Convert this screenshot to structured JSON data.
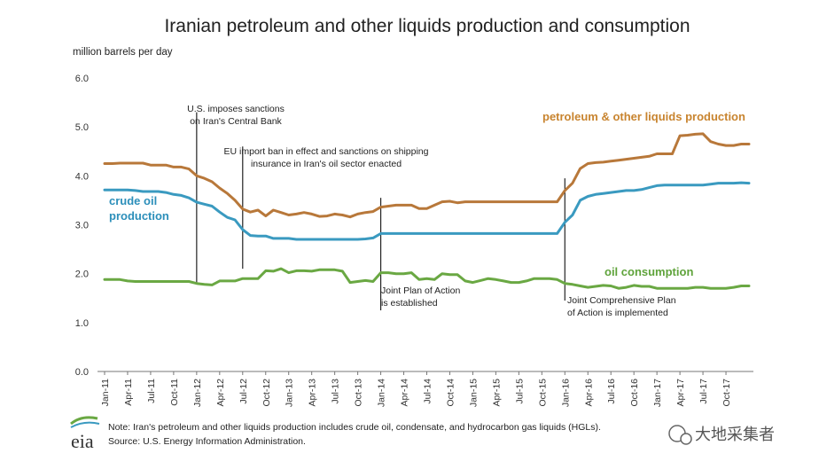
{
  "chart_data": {
    "type": "line",
    "title": "Iranian petroleum and other liquids production and consumption",
    "ylabel": "million barrels per day",
    "ylim": [
      0,
      6
    ],
    "yticks": [
      "0.0",
      "1.0",
      "2.0",
      "3.0",
      "4.0",
      "5.0",
      "6.0"
    ],
    "grid": false,
    "x_tick_labels": [
      "Jan-11",
      "Apr-11",
      "Jul-11",
      "Oct-11",
      "Jan-12",
      "Apr-12",
      "Jul-12",
      "Oct-12",
      "Jan-13",
      "Apr-13",
      "Jul-13",
      "Oct-13",
      "Jan-14",
      "Apr-14",
      "Jul-14",
      "Oct-14",
      "Jan-15",
      "Apr-15",
      "Jul-15",
      "Oct-15",
      "Jan-16",
      "Apr-16",
      "Jul-16",
      "Oct-16",
      "Jan-17",
      "Apr-17",
      "Jul-17",
      "Oct-17"
    ],
    "series": [
      {
        "name": "petroleum & other liquids production",
        "color": "#b8783a",
        "values": [
          4.25,
          4.25,
          4.26,
          4.26,
          4.26,
          4.26,
          4.22,
          4.22,
          4.22,
          4.18,
          4.18,
          4.14,
          4.0,
          3.95,
          3.88,
          3.75,
          3.64,
          3.5,
          3.32,
          3.26,
          3.3,
          3.18,
          3.3,
          3.25,
          3.2,
          3.22,
          3.25,
          3.22,
          3.17,
          3.18,
          3.22,
          3.2,
          3.16,
          3.22,
          3.25,
          3.27,
          3.36,
          3.38,
          3.4,
          3.4,
          3.4,
          3.33,
          3.33,
          3.4,
          3.47,
          3.48,
          3.45,
          3.47,
          3.47,
          3.47,
          3.47,
          3.47,
          3.47,
          3.47,
          3.47,
          3.47,
          3.47,
          3.47,
          3.47,
          3.47,
          3.7,
          3.85,
          4.15,
          4.25,
          4.27,
          4.28,
          4.3,
          4.32,
          4.34,
          4.36,
          4.38,
          4.4,
          4.45,
          4.45,
          4.45,
          4.82,
          4.83,
          4.85,
          4.86,
          4.7,
          4.65,
          4.62,
          4.62,
          4.65,
          4.65
        ]
      },
      {
        "name": "crude oil production",
        "color": "#3a9ac0",
        "values": [
          3.71,
          3.71,
          3.71,
          3.71,
          3.7,
          3.68,
          3.68,
          3.68,
          3.66,
          3.62,
          3.6,
          3.55,
          3.46,
          3.42,
          3.38,
          3.26,
          3.15,
          3.1,
          2.9,
          2.78,
          2.77,
          2.77,
          2.72,
          2.72,
          2.72,
          2.7,
          2.7,
          2.7,
          2.7,
          2.7,
          2.7,
          2.7,
          2.7,
          2.7,
          2.71,
          2.73,
          2.82,
          2.82,
          2.82,
          2.82,
          2.82,
          2.82,
          2.82,
          2.82,
          2.82,
          2.82,
          2.82,
          2.82,
          2.82,
          2.82,
          2.82,
          2.82,
          2.82,
          2.82,
          2.82,
          2.82,
          2.82,
          2.82,
          2.82,
          2.82,
          3.05,
          3.2,
          3.5,
          3.58,
          3.62,
          3.64,
          3.66,
          3.68,
          3.7,
          3.7,
          3.72,
          3.76,
          3.8,
          3.81,
          3.81,
          3.81,
          3.81,
          3.81,
          3.81,
          3.83,
          3.85,
          3.85,
          3.85,
          3.86,
          3.85
        ]
      },
      {
        "name": "oil consumption",
        "color": "#6aa843",
        "values": [
          1.88,
          1.88,
          1.88,
          1.85,
          1.84,
          1.84,
          1.84,
          1.84,
          1.84,
          1.84,
          1.84,
          1.84,
          1.8,
          1.78,
          1.77,
          1.85,
          1.85,
          1.85,
          1.9,
          1.9,
          1.9,
          2.06,
          2.05,
          2.1,
          2.02,
          2.06,
          2.06,
          2.05,
          2.08,
          2.08,
          2.08,
          2.05,
          1.82,
          1.84,
          1.86,
          1.84,
          2.02,
          2.02,
          2.0,
          2.0,
          2.02,
          1.88,
          1.9,
          1.88,
          2.0,
          1.98,
          1.98,
          1.85,
          1.82,
          1.86,
          1.9,
          1.88,
          1.85,
          1.82,
          1.82,
          1.85,
          1.9,
          1.9,
          1.9,
          1.88,
          1.8,
          1.78,
          1.75,
          1.72,
          1.74,
          1.76,
          1.75,
          1.7,
          1.72,
          1.76,
          1.74,
          1.74,
          1.7,
          1.7,
          1.7,
          1.7,
          1.7,
          1.72,
          1.72,
          1.7,
          1.7,
          1.7,
          1.72,
          1.75,
          1.75
        ]
      }
    ],
    "series_labels": [
      {
        "text": "petroleum & other liquids production",
        "color": "#c8842f"
      },
      {
        "text": "crude oil",
        "color": "#2c8fba"
      },
      {
        "text": "production",
        "color": "#2c8fba"
      },
      {
        "text": "oil consumption",
        "color": "#5fa33b"
      }
    ],
    "annotations": [
      {
        "lines": [
          "U.S. imposes sanctions",
          "on Iran's Central Bank"
        ],
        "x_index": 12,
        "y_from": 5.3,
        "y_to": 1.8
      },
      {
        "lines": [
          "EU import ban in effect and sanctions on shipping",
          "insurance in Iran's oil sector enacted"
        ],
        "x_index": 18,
        "y_from": 4.6,
        "y_to": 2.1
      },
      {
        "lines": [
          "Joint Plan of Action",
          "is established"
        ],
        "x_index": 36,
        "y_from": 3.55,
        "y_to": 1.25
      },
      {
        "lines": [
          "Joint Comprehensive Plan",
          "of Action is implemented"
        ],
        "x_index": 60,
        "y_from": 3.95,
        "y_to": 1.45
      }
    ]
  },
  "footer": {
    "logo_text": "eia",
    "note": "Note: Iran's petroleum and other liquids production includes crude oil, condensate, and hydrocarbon gas liquids (HGLs).",
    "source": "Source: U.S. Energy Information Administration."
  },
  "watermark": {
    "text": "大地采集者"
  }
}
